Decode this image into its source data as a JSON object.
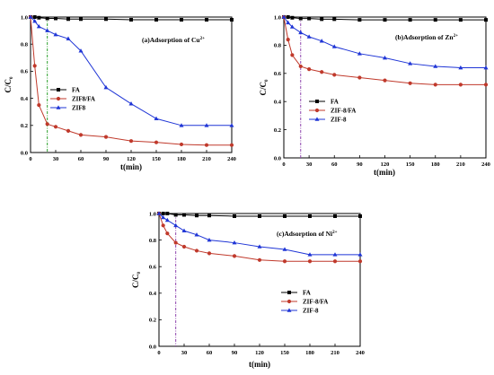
{
  "chart_data": [
    {
      "type": "line",
      "title": "(a)Adsorption of Cu",
      "title_superscript": "2+",
      "xlabel": "t(min)",
      "ylabel": "C/C",
      "ylabel_subscript": "0",
      "xlim": [
        0,
        240
      ],
      "ylim": [
        0,
        1.0
      ],
      "xticks": [
        "0",
        "30",
        "60",
        "90",
        "120",
        "150",
        "180",
        "210",
        "240"
      ],
      "yticks": [
        "0.0",
        "0.2",
        "0.4",
        "0.6",
        "0.8",
        "1.0"
      ],
      "legend_position": "middle-left",
      "vline": {
        "x": 20,
        "color": "#2ca02c"
      },
      "x": [
        0,
        5,
        10,
        20,
        30,
        45,
        60,
        90,
        120,
        150,
        180,
        210,
        240
      ],
      "series": [
        {
          "name": "FA",
          "color": "#000000",
          "marker": "square",
          "values": [
            1.0,
            1.0,
            0.995,
            0.99,
            0.99,
            0.985,
            0.985,
            0.985,
            0.98,
            0.98,
            0.98,
            0.98,
            0.98
          ]
        },
        {
          "name": "ZIF8/FA",
          "color": "#c0392b",
          "marker": "circle",
          "values": [
            1.0,
            0.64,
            0.35,
            0.21,
            0.19,
            0.16,
            0.13,
            0.115,
            0.085,
            0.075,
            0.06,
            0.055,
            0.055
          ]
        },
        {
          "name": "ZIF8",
          "color": "#1f35d6",
          "marker": "triangle",
          "values": [
            1.0,
            0.97,
            0.93,
            0.9,
            0.87,
            0.84,
            0.75,
            0.48,
            0.36,
            0.25,
            0.2,
            0.2,
            0.2
          ]
        }
      ]
    },
    {
      "type": "line",
      "title": "(b)Adsorption of Zn",
      "title_superscript": "2+",
      "xlabel": "t(min)",
      "ylabel": "C/C",
      "ylabel_subscript": "0",
      "xlim": [
        0,
        240
      ],
      "ylim": [
        0,
        1.0
      ],
      "xticks": [
        "0",
        "30",
        "60",
        "90",
        "120",
        "150",
        "180",
        "210",
        "240"
      ],
      "yticks": [
        "0.0",
        "0.2",
        "0.4",
        "0.6",
        "0.8",
        "1.0"
      ],
      "legend_position": "bottom-left",
      "vline": {
        "x": 20,
        "color": "#8e44ad"
      },
      "x": [
        0,
        5,
        10,
        20,
        30,
        45,
        60,
        90,
        120,
        150,
        180,
        210,
        240
      ],
      "series": [
        {
          "name": "FA",
          "color": "#000000",
          "marker": "square",
          "values": [
            1.0,
            1.0,
            0.995,
            0.99,
            0.99,
            0.985,
            0.985,
            0.98,
            0.98,
            0.98,
            0.98,
            0.98,
            0.98
          ]
        },
        {
          "name": "ZIF-8/FA",
          "color": "#c0392b",
          "marker": "circle",
          "values": [
            1.0,
            0.84,
            0.73,
            0.65,
            0.63,
            0.61,
            0.59,
            0.57,
            0.55,
            0.53,
            0.52,
            0.52,
            0.52
          ]
        },
        {
          "name": "ZIF-8",
          "color": "#1f35d6",
          "marker": "triangle",
          "values": [
            1.0,
            0.96,
            0.93,
            0.89,
            0.86,
            0.83,
            0.79,
            0.74,
            0.71,
            0.67,
            0.65,
            0.64,
            0.64
          ]
        }
      ]
    },
    {
      "type": "line",
      "title": "(c)Adsorption of Ni",
      "title_superscript": "2+",
      "xlabel": "t(min)",
      "ylabel": "C/C",
      "ylabel_subscript": "0",
      "xlim": [
        0,
        240
      ],
      "ylim": [
        0,
        1.0
      ],
      "xticks": [
        "0",
        "30",
        "60",
        "90",
        "120",
        "150",
        "180",
        "210",
        "240"
      ],
      "yticks": [
        "0.0",
        "0.2",
        "0.4",
        "0.6",
        "0.8",
        "1.0"
      ],
      "legend_position": "bottom-left",
      "vline": {
        "x": 20,
        "color": "#8e44ad"
      },
      "x": [
        0,
        5,
        10,
        20,
        30,
        45,
        60,
        90,
        120,
        150,
        180,
        210,
        240
      ],
      "series": [
        {
          "name": "FA",
          "color": "#000000",
          "marker": "square",
          "values": [
            1.0,
            1.0,
            1.0,
            0.99,
            0.99,
            0.985,
            0.985,
            0.98,
            0.98,
            0.98,
            0.98,
            0.98,
            0.98
          ]
        },
        {
          "name": "ZIF-8/FA",
          "color": "#c0392b",
          "marker": "circle",
          "values": [
            1.0,
            0.91,
            0.85,
            0.78,
            0.75,
            0.72,
            0.7,
            0.68,
            0.65,
            0.64,
            0.64,
            0.64,
            0.64
          ]
        },
        {
          "name": "ZIF-8",
          "color": "#1f35d6",
          "marker": "triangle",
          "values": [
            1.0,
            0.97,
            0.95,
            0.91,
            0.87,
            0.84,
            0.8,
            0.78,
            0.75,
            0.73,
            0.69,
            0.69,
            0.69
          ]
        }
      ]
    }
  ]
}
